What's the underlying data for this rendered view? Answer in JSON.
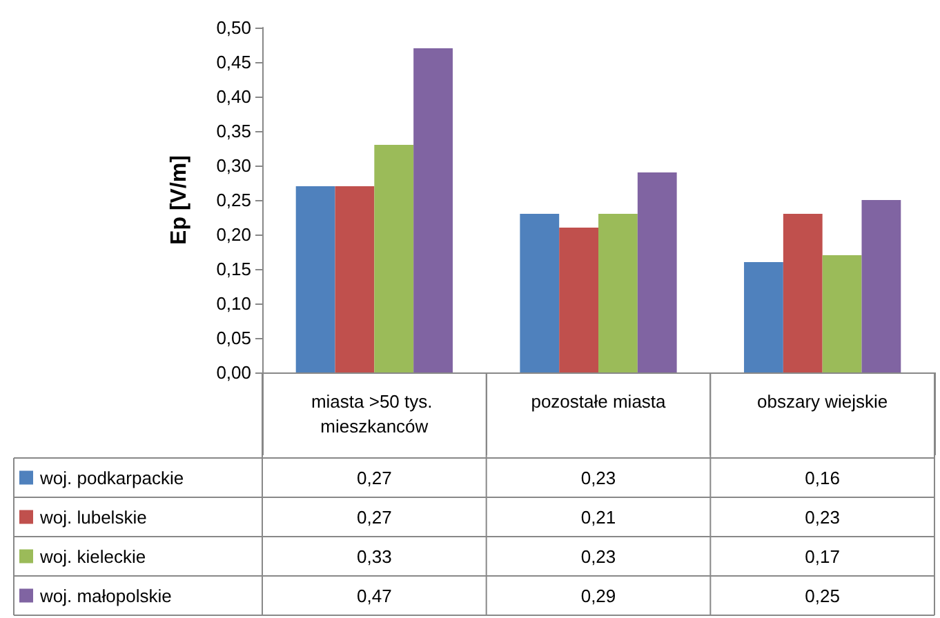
{
  "chart_data": {
    "type": "bar",
    "ylabel": "Ep [V/m]",
    "categories": [
      "miasta >50 tys. mieszkanców",
      "pozostałe miasta",
      "obszary wiejskie"
    ],
    "series": [
      {
        "name": "woj. podkarpackie",
        "color": "#4f81bd",
        "values": [
          0.27,
          0.23,
          0.16
        ],
        "value_labels": [
          "0,27",
          "0,23",
          "0,16"
        ]
      },
      {
        "name": "woj. lubelskie",
        "color": "#c0504d",
        "values": [
          0.27,
          0.21,
          0.23
        ],
        "value_labels": [
          "0,27",
          "0,21",
          "0,23"
        ]
      },
      {
        "name": "woj. kieleckie",
        "color": "#9bbb59",
        "values": [
          0.33,
          0.23,
          0.17
        ],
        "value_labels": [
          "0,33",
          "0,23",
          "0,17"
        ]
      },
      {
        "name": "woj. małopolskie",
        "color": "#8064a2",
        "values": [
          0.47,
          0.29,
          0.25
        ],
        "value_labels": [
          "0,47",
          "0,29",
          "0,25"
        ]
      }
    ],
    "ylim": [
      0,
      0.5
    ],
    "yticks": [
      {
        "value": 0,
        "label": "0,00"
      },
      {
        "value": 0.05,
        "label": "0,05"
      },
      {
        "value": 0.1,
        "label": "0,10"
      },
      {
        "value": 0.15,
        "label": "0,15"
      },
      {
        "value": 0.2,
        "label": "0,20"
      },
      {
        "value": 0.25,
        "label": "0,25"
      },
      {
        "value": 0.3,
        "label": "0,30"
      },
      {
        "value": 0.35,
        "label": "0,35"
      },
      {
        "value": 0.4,
        "label": "0,40"
      },
      {
        "value": 0.45,
        "label": "0,45"
      },
      {
        "value": 0.5,
        "label": "0,50"
      }
    ],
    "grid": false,
    "legend": "bottom left"
  }
}
